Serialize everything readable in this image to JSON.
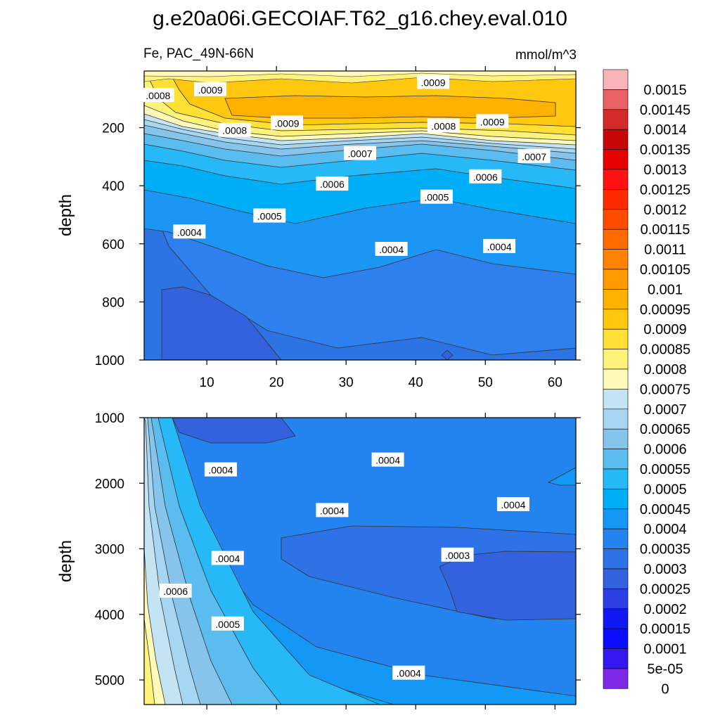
{
  "chart_data": [
    {
      "type": "heatmap",
      "panel": "upper",
      "title": "g.e20a06i.GECOIAF.T62_g16.chey.eval.010",
      "left_label": "Fe, PAC_49N-66N",
      "right_label": "mmol/m^3",
      "ylabel": "depth",
      "xlabel": "",
      "xlim": [
        1,
        63
      ],
      "ylim": [
        1000,
        5
      ],
      "x_ticks": [
        10,
        20,
        30,
        40,
        50,
        60
      ],
      "y_ticks": [
        200,
        400,
        600,
        800,
        1000
      ],
      "contour_labels": [
        {
          "text": ".0008",
          "x": 3,
          "y": 90
        },
        {
          "text": ".0009",
          "x": 10.5,
          "y": 70
        },
        {
          "text": ".0009",
          "x": 42.5,
          "y": 45
        },
        {
          "text": ".0009",
          "x": 21.5,
          "y": 185
        },
        {
          "text": ".0008",
          "x": 14,
          "y": 210
        },
        {
          "text": ".0008",
          "x": 44,
          "y": 195
        },
        {
          "text": ".0009",
          "x": 51,
          "y": 180
        },
        {
          "text": ".0007",
          "x": 32,
          "y": 290
        },
        {
          "text": ".0007",
          "x": 57,
          "y": 300
        },
        {
          "text": ".0006",
          "x": 50,
          "y": 370
        },
        {
          "text": ".0006",
          "x": 28,
          "y": 395
        },
        {
          "text": ".0005",
          "x": 43,
          "y": 440
        },
        {
          "text": ".0005",
          "x": 19,
          "y": 505
        },
        {
          "text": ".0004",
          "x": 7.5,
          "y": 560
        },
        {
          "text": ".0004",
          "x": 36.5,
          "y": 620
        },
        {
          "text": ".0004",
          "x": 52,
          "y": 610
        }
      ]
    },
    {
      "type": "heatmap",
      "panel": "lower",
      "ylabel": "depth",
      "xlim": [
        1,
        63
      ],
      "ylim": [
        5375,
        1000
      ],
      "y_ticks": [
        1000,
        2000,
        3000,
        4000,
        5000
      ],
      "contour_labels": [
        {
          "text": ".0004",
          "x": 12,
          "y": 1800
        },
        {
          "text": ".0004",
          "x": 36,
          "y": 1650
        },
        {
          "text": ".0004",
          "x": 28,
          "y": 2420
        },
        {
          "text": ".0004",
          "x": 54,
          "y": 2330
        },
        {
          "text": ".0004",
          "x": 13,
          "y": 3150
        },
        {
          "text": ".0003",
          "x": 46,
          "y": 3100
        },
        {
          "text": ".0006",
          "x": 5.5,
          "y": 3650
        },
        {
          "text": ".0005",
          "x": 13,
          "y": 4150
        },
        {
          "text": ".0004",
          "x": 39,
          "y": 4900
        }
      ]
    }
  ],
  "colorbar": {
    "labels": [
      "0.0015",
      "0.00145",
      "0.0014",
      "0.00135",
      "0.0013",
      "0.00125",
      "0.0012",
      "0.00115",
      "0.0011",
      "0.00105",
      "0.001",
      "0.00095",
      "0.0009",
      "0.00085",
      "0.0008",
      "0.00075",
      "0.0007",
      "0.00065",
      "0.0006",
      "0.00055",
      "0.0005",
      "0.00045",
      "0.0004",
      "0.00035",
      "0.0003",
      "0.00025",
      "0.0002",
      "0.00015",
      "0.0001",
      "5e-05",
      "0"
    ],
    "colors": [
      "#f8b4b8",
      "#e86164",
      "#d42a2a",
      "#c70808",
      "#e60000",
      "#ff1212",
      "#ff2b00",
      "#ff4c00",
      "#ff6a00",
      "#ff8200",
      "#ff9a00",
      "#ffb100",
      "#ffc80f",
      "#ffe033",
      "#fff27a",
      "#fffab8",
      "#c4e4f4",
      "#a6d6f1",
      "#86c4ec",
      "#5bbcf0",
      "#27b8f7",
      "#00aef8",
      "#1498f5",
      "#2384f0",
      "#2d72e6",
      "#3462de",
      "#2c3fe5",
      "#1019f5",
      "#0d0dff",
      "#3518f0",
      "#7d28e6"
    ],
    "note": "colors[i] fills the band directly below labels[i]; the last color is the bottom cap"
  }
}
